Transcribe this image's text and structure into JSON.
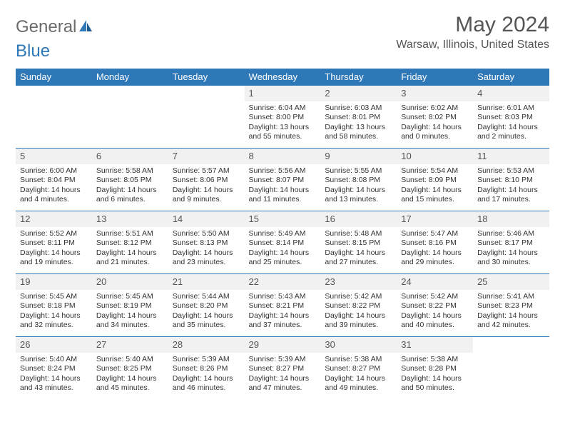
{
  "brand": {
    "part1": "General",
    "part2": "Blue"
  },
  "title": "May 2024",
  "location": "Warsaw, Illinois, United States",
  "colors": {
    "header_bg": "#2f78b7",
    "header_text": "#ffffff",
    "daynum_bg": "#f1f1f1",
    "body_text": "#333333",
    "title_text": "#555555",
    "row_border": "#2f78b7"
  },
  "typography": {
    "month_title_fontsize": 30,
    "location_fontsize": 16,
    "weekday_fontsize": 13,
    "daynum_fontsize": 13,
    "cell_fontsize": 10.5
  },
  "weekdays": [
    "Sunday",
    "Monday",
    "Tuesday",
    "Wednesday",
    "Thursday",
    "Friday",
    "Saturday"
  ],
  "weeks": [
    [
      null,
      null,
      null,
      {
        "n": "1",
        "sunrise": "6:04 AM",
        "sunset": "8:00 PM",
        "daylight": "13 hours and 55 minutes."
      },
      {
        "n": "2",
        "sunrise": "6:03 AM",
        "sunset": "8:01 PM",
        "daylight": "13 hours and 58 minutes."
      },
      {
        "n": "3",
        "sunrise": "6:02 AM",
        "sunset": "8:02 PM",
        "daylight": "14 hours and 0 minutes."
      },
      {
        "n": "4",
        "sunrise": "6:01 AM",
        "sunset": "8:03 PM",
        "daylight": "14 hours and 2 minutes."
      }
    ],
    [
      {
        "n": "5",
        "sunrise": "6:00 AM",
        "sunset": "8:04 PM",
        "daylight": "14 hours and 4 minutes."
      },
      {
        "n": "6",
        "sunrise": "5:58 AM",
        "sunset": "8:05 PM",
        "daylight": "14 hours and 6 minutes."
      },
      {
        "n": "7",
        "sunrise": "5:57 AM",
        "sunset": "8:06 PM",
        "daylight": "14 hours and 9 minutes."
      },
      {
        "n": "8",
        "sunrise": "5:56 AM",
        "sunset": "8:07 PM",
        "daylight": "14 hours and 11 minutes."
      },
      {
        "n": "9",
        "sunrise": "5:55 AM",
        "sunset": "8:08 PM",
        "daylight": "14 hours and 13 minutes."
      },
      {
        "n": "10",
        "sunrise": "5:54 AM",
        "sunset": "8:09 PM",
        "daylight": "14 hours and 15 minutes."
      },
      {
        "n": "11",
        "sunrise": "5:53 AM",
        "sunset": "8:10 PM",
        "daylight": "14 hours and 17 minutes."
      }
    ],
    [
      {
        "n": "12",
        "sunrise": "5:52 AM",
        "sunset": "8:11 PM",
        "daylight": "14 hours and 19 minutes."
      },
      {
        "n": "13",
        "sunrise": "5:51 AM",
        "sunset": "8:12 PM",
        "daylight": "14 hours and 21 minutes."
      },
      {
        "n": "14",
        "sunrise": "5:50 AM",
        "sunset": "8:13 PM",
        "daylight": "14 hours and 23 minutes."
      },
      {
        "n": "15",
        "sunrise": "5:49 AM",
        "sunset": "8:14 PM",
        "daylight": "14 hours and 25 minutes."
      },
      {
        "n": "16",
        "sunrise": "5:48 AM",
        "sunset": "8:15 PM",
        "daylight": "14 hours and 27 minutes."
      },
      {
        "n": "17",
        "sunrise": "5:47 AM",
        "sunset": "8:16 PM",
        "daylight": "14 hours and 29 minutes."
      },
      {
        "n": "18",
        "sunrise": "5:46 AM",
        "sunset": "8:17 PM",
        "daylight": "14 hours and 30 minutes."
      }
    ],
    [
      {
        "n": "19",
        "sunrise": "5:45 AM",
        "sunset": "8:18 PM",
        "daylight": "14 hours and 32 minutes."
      },
      {
        "n": "20",
        "sunrise": "5:45 AM",
        "sunset": "8:19 PM",
        "daylight": "14 hours and 34 minutes."
      },
      {
        "n": "21",
        "sunrise": "5:44 AM",
        "sunset": "8:20 PM",
        "daylight": "14 hours and 35 minutes."
      },
      {
        "n": "22",
        "sunrise": "5:43 AM",
        "sunset": "8:21 PM",
        "daylight": "14 hours and 37 minutes."
      },
      {
        "n": "23",
        "sunrise": "5:42 AM",
        "sunset": "8:22 PM",
        "daylight": "14 hours and 39 minutes."
      },
      {
        "n": "24",
        "sunrise": "5:42 AM",
        "sunset": "8:22 PM",
        "daylight": "14 hours and 40 minutes."
      },
      {
        "n": "25",
        "sunrise": "5:41 AM",
        "sunset": "8:23 PM",
        "daylight": "14 hours and 42 minutes."
      }
    ],
    [
      {
        "n": "26",
        "sunrise": "5:40 AM",
        "sunset": "8:24 PM",
        "daylight": "14 hours and 43 minutes."
      },
      {
        "n": "27",
        "sunrise": "5:40 AM",
        "sunset": "8:25 PM",
        "daylight": "14 hours and 45 minutes."
      },
      {
        "n": "28",
        "sunrise": "5:39 AM",
        "sunset": "8:26 PM",
        "daylight": "14 hours and 46 minutes."
      },
      {
        "n": "29",
        "sunrise": "5:39 AM",
        "sunset": "8:27 PM",
        "daylight": "14 hours and 47 minutes."
      },
      {
        "n": "30",
        "sunrise": "5:38 AM",
        "sunset": "8:27 PM",
        "daylight": "14 hours and 49 minutes."
      },
      {
        "n": "31",
        "sunrise": "5:38 AM",
        "sunset": "8:28 PM",
        "daylight": "14 hours and 50 minutes."
      },
      null
    ]
  ],
  "labels": {
    "sunrise": "Sunrise:",
    "sunset": "Sunset:",
    "daylight": "Daylight:"
  }
}
